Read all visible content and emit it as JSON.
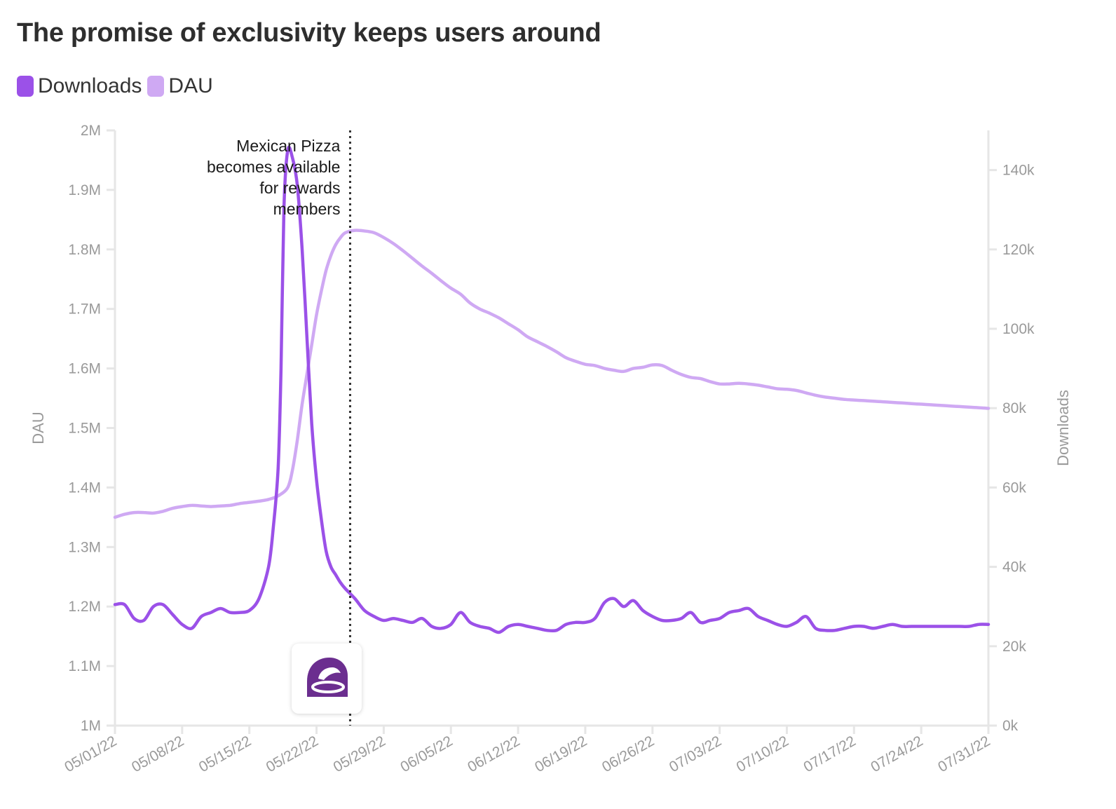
{
  "title": "The promise of exclusivity keeps users around",
  "legend": [
    {
      "label": "Downloads",
      "color": "#9B51E8"
    },
    {
      "label": "DAU",
      "color": "#CFA9F3"
    }
  ],
  "annotation": {
    "lines": [
      "Mexican Pizza",
      "becomes available",
      "for rewards",
      "members"
    ],
    "x_day": 24.5
  },
  "logo": {
    "icon": "taco-bell-bell-icon",
    "color": "#6B2E8F"
  },
  "chart_data": {
    "type": "line",
    "title": "The promise of exclusivity keeps users around",
    "xlabel": "",
    "x_ticks": [
      "05/01/22",
      "05/08/22",
      "05/15/22",
      "05/22/22",
      "05/29/22",
      "06/05/22",
      "06/12/22",
      "06/19/22",
      "06/26/22",
      "07/03/22",
      "07/10/22",
      "07/17/22",
      "07/24/22",
      "07/31/22"
    ],
    "x_range_days": [
      0,
      91
    ],
    "y_left": {
      "label": "DAU",
      "range": [
        1000000,
        2000000
      ],
      "ticks": [
        "1M",
        "1.1M",
        "1.2M",
        "1.3M",
        "1.4M",
        "1.5M",
        "1.6M",
        "1.7M",
        "1.8M",
        "1.9M",
        "2M"
      ]
    },
    "y_right": {
      "label": "Downloads",
      "range": [
        0,
        150000
      ],
      "ticks": [
        "0k",
        "20k",
        "40k",
        "60k",
        "80k",
        "100k",
        "120k",
        "140k"
      ]
    },
    "series": [
      {
        "name": "DAU",
        "axis": "left",
        "color": "#CFA9F3",
        "points": [
          [
            0,
            1350000
          ],
          [
            1,
            1355000
          ],
          [
            2,
            1358000
          ],
          [
            3,
            1358000
          ],
          [
            4,
            1357000
          ],
          [
            5,
            1360000
          ],
          [
            6,
            1365000
          ],
          [
            7,
            1368000
          ],
          [
            8,
            1370000
          ],
          [
            9,
            1369000
          ],
          [
            10,
            1368000
          ],
          [
            11,
            1369000
          ],
          [
            12,
            1370000
          ],
          [
            13,
            1373000
          ],
          [
            14,
            1375000
          ],
          [
            15,
            1377000
          ],
          [
            16,
            1380000
          ],
          [
            17,
            1386000
          ],
          [
            18,
            1400000
          ],
          [
            18.5,
            1430000
          ],
          [
            19,
            1480000
          ],
          [
            19.5,
            1540000
          ],
          [
            20,
            1590000
          ],
          [
            20.5,
            1640000
          ],
          [
            21,
            1690000
          ],
          [
            21.5,
            1730000
          ],
          [
            22,
            1765000
          ],
          [
            22.5,
            1790000
          ],
          [
            23,
            1808000
          ],
          [
            23.5,
            1820000
          ],
          [
            24,
            1828000
          ],
          [
            25,
            1832000
          ],
          [
            26,
            1831000
          ],
          [
            27,
            1828000
          ],
          [
            28,
            1820000
          ],
          [
            29,
            1810000
          ],
          [
            30,
            1798000
          ],
          [
            31,
            1785000
          ],
          [
            32,
            1772000
          ],
          [
            33,
            1760000
          ],
          [
            34,
            1747000
          ],
          [
            35,
            1735000
          ],
          [
            36,
            1725000
          ],
          [
            37,
            1710000
          ],
          [
            38,
            1700000
          ],
          [
            39,
            1693000
          ],
          [
            40,
            1685000
          ],
          [
            41,
            1675000
          ],
          [
            42,
            1665000
          ],
          [
            43,
            1653000
          ],
          [
            44,
            1645000
          ],
          [
            45,
            1637000
          ],
          [
            46,
            1628000
          ],
          [
            47,
            1618000
          ],
          [
            48,
            1612000
          ],
          [
            49,
            1607000
          ],
          [
            50,
            1605000
          ],
          [
            51,
            1600000
          ],
          [
            52,
            1597000
          ],
          [
            53,
            1595000
          ],
          [
            54,
            1600000
          ],
          [
            55,
            1602000
          ],
          [
            56,
            1606000
          ],
          [
            57,
            1605000
          ],
          [
            58,
            1597000
          ],
          [
            59,
            1590000
          ],
          [
            60,
            1585000
          ],
          [
            61,
            1583000
          ],
          [
            62,
            1578000
          ],
          [
            63,
            1574000
          ],
          [
            64,
            1574000
          ],
          [
            65,
            1575000
          ],
          [
            66,
            1574000
          ],
          [
            67,
            1572000
          ],
          [
            68,
            1569000
          ],
          [
            69,
            1566000
          ],
          [
            70,
            1565000
          ],
          [
            71,
            1563000
          ],
          [
            72,
            1559000
          ],
          [
            73,
            1555000
          ],
          [
            74,
            1552000
          ],
          [
            75,
            1550000
          ],
          [
            76,
            1548000
          ],
          [
            77,
            1547000
          ],
          [
            78,
            1546000
          ],
          [
            79,
            1545000
          ],
          [
            80,
            1544000
          ],
          [
            81,
            1543000
          ],
          [
            82,
            1542000
          ],
          [
            83,
            1541000
          ],
          [
            84,
            1540000
          ],
          [
            85,
            1539000
          ],
          [
            86,
            1538000
          ],
          [
            87,
            1537000
          ],
          [
            88,
            1536000
          ],
          [
            89,
            1535000
          ],
          [
            90,
            1534000
          ],
          [
            91,
            1533000
          ]
        ]
      },
      {
        "name": "Downloads",
        "axis": "right",
        "color": "#9B51E8",
        "points": [
          [
            0,
            30500
          ],
          [
            1,
            30500
          ],
          [
            2,
            27000
          ],
          [
            3,
            26500
          ],
          [
            4,
            30000
          ],
          [
            5,
            30500
          ],
          [
            6,
            28000
          ],
          [
            7,
            25500
          ],
          [
            8,
            24500
          ],
          [
            9,
            27500
          ],
          [
            10,
            28500
          ],
          [
            11,
            29500
          ],
          [
            12,
            28500
          ],
          [
            13,
            28500
          ],
          [
            14,
            29000
          ],
          [
            15,
            32000
          ],
          [
            16,
            40000
          ],
          [
            16.5,
            50000
          ],
          [
            17,
            65000
          ],
          [
            17.3,
            90000
          ],
          [
            17.6,
            130000
          ],
          [
            18,
            145000
          ],
          [
            18.5,
            143000
          ],
          [
            19,
            136000
          ],
          [
            19.5,
            120000
          ],
          [
            20,
            98000
          ],
          [
            20.5,
            76000
          ],
          [
            21,
            62000
          ],
          [
            21.5,
            52000
          ],
          [
            22,
            44000
          ],
          [
            22.5,
            40000
          ],
          [
            23,
            38000
          ],
          [
            23.5,
            36000
          ],
          [
            24,
            34500
          ],
          [
            25,
            32000
          ],
          [
            26,
            29000
          ],
          [
            27,
            27500
          ],
          [
            28,
            26500
          ],
          [
            29,
            27000
          ],
          [
            30,
            26500
          ],
          [
            31,
            26000
          ],
          [
            32,
            27000
          ],
          [
            33,
            25000
          ],
          [
            34,
            24500
          ],
          [
            35,
            25500
          ],
          [
            36,
            28500
          ],
          [
            37,
            26000
          ],
          [
            38,
            25000
          ],
          [
            39,
            24500
          ],
          [
            40,
            23500
          ],
          [
            41,
            25000
          ],
          [
            42,
            25500
          ],
          [
            43,
            25000
          ],
          [
            44,
            24500
          ],
          [
            45,
            24000
          ],
          [
            46,
            24000
          ],
          [
            47,
            25500
          ],
          [
            48,
            26000
          ],
          [
            49,
            26000
          ],
          [
            50,
            27000
          ],
          [
            51,
            31000
          ],
          [
            52,
            32000
          ],
          [
            53,
            30000
          ],
          [
            54,
            31500
          ],
          [
            55,
            29000
          ],
          [
            56,
            27500
          ],
          [
            57,
            26500
          ],
          [
            58,
            26500
          ],
          [
            59,
            27000
          ],
          [
            60,
            28500
          ],
          [
            61,
            26000
          ],
          [
            62,
            26500
          ],
          [
            63,
            27000
          ],
          [
            64,
            28500
          ],
          [
            65,
            29000
          ],
          [
            66,
            29500
          ],
          [
            67,
            27500
          ],
          [
            68,
            26500
          ],
          [
            69,
            25500
          ],
          [
            70,
            25000
          ],
          [
            71,
            26000
          ],
          [
            72,
            27500
          ],
          [
            73,
            24500
          ],
          [
            74,
            24000
          ],
          [
            75,
            24000
          ],
          [
            76,
            24500
          ],
          [
            77,
            25000
          ],
          [
            78,
            25000
          ],
          [
            79,
            24500
          ],
          [
            80,
            25000
          ],
          [
            81,
            25500
          ],
          [
            82,
            25000
          ],
          [
            83,
            25000
          ],
          [
            84,
            25000
          ],
          [
            85,
            25000
          ],
          [
            86,
            25000
          ],
          [
            87,
            25000
          ],
          [
            88,
            25000
          ],
          [
            89,
            25000
          ],
          [
            90,
            25500
          ],
          [
            91,
            25500
          ]
        ]
      }
    ]
  }
}
